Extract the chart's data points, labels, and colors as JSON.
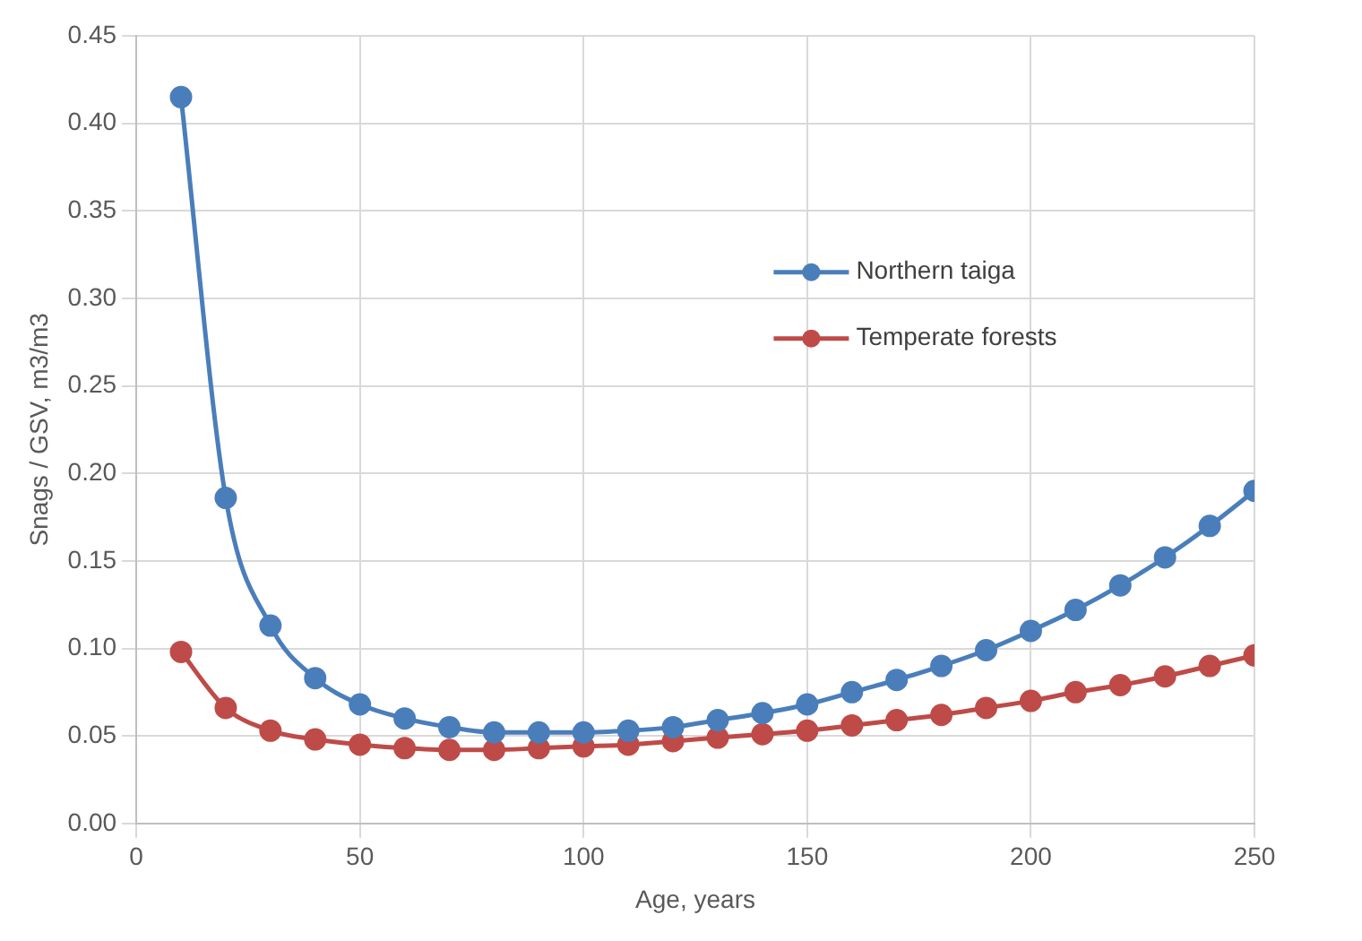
{
  "chart_data": {
    "type": "line",
    "xlabel": "Age, years",
    "ylabel": "Snags / GSV, m3/m3",
    "x": [
      10,
      20,
      30,
      40,
      50,
      60,
      70,
      80,
      90,
      100,
      110,
      120,
      130,
      140,
      150,
      160,
      170,
      180,
      190,
      200,
      210,
      220,
      230,
      240,
      250
    ],
    "series": [
      {
        "name": "Northern taiga",
        "color": "#4a7ebb",
        "values": [
          0.415,
          0.186,
          0.113,
          0.083,
          0.068,
          0.06,
          0.055,
          0.052,
          0.052,
          0.052,
          0.053,
          0.055,
          0.059,
          0.063,
          0.068,
          0.075,
          0.082,
          0.09,
          0.099,
          0.11,
          0.122,
          0.136,
          0.152,
          0.17,
          0.19
        ]
      },
      {
        "name": "Temperate forests",
        "color": "#be4b48",
        "values": [
          0.098,
          0.066,
          0.053,
          0.048,
          0.045,
          0.043,
          0.042,
          0.042,
          0.043,
          0.044,
          0.045,
          0.047,
          0.049,
          0.051,
          0.053,
          0.056,
          0.059,
          0.062,
          0.066,
          0.07,
          0.075,
          0.079,
          0.084,
          0.09,
          0.096
        ]
      }
    ],
    "xlim": [
      0,
      250
    ],
    "xticks": [
      0,
      50,
      100,
      150,
      200,
      250
    ],
    "ylim": [
      0,
      0.45
    ],
    "yticks": [
      {
        "value": 0,
        "label": "0.00"
      },
      0.05,
      {
        "value": 0.1,
        "label": "0.10"
      },
      0.15,
      {
        "value": 0.2,
        "label": "0.20"
      },
      0.25,
      {
        "value": 0.3,
        "label": "0.30"
      },
      0.35,
      {
        "value": 0.4,
        "label": "0.40"
      },
      0.45
    ],
    "grid": true,
    "legend": "right",
    "marker": "circle",
    "line_style": "solid"
  }
}
